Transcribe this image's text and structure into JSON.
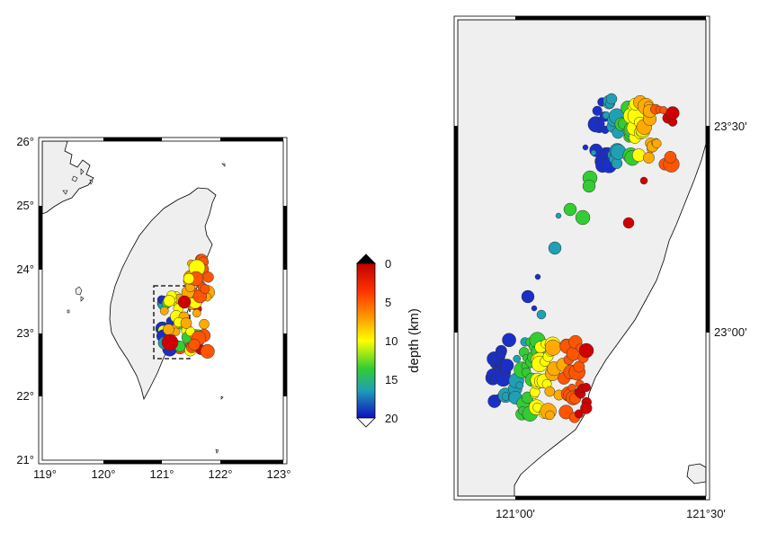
{
  "left_map": {
    "lon_ticks": [
      "119°",
      "120°",
      "121°",
      "122°",
      "123°"
    ],
    "lat_ticks": [
      "21°",
      "22°",
      "23°",
      "24°",
      "25°",
      "26°"
    ]
  },
  "colorbar": {
    "title": "depth (km)",
    "ticks": [
      "0",
      "5",
      "10",
      "15",
      "20"
    ],
    "range": [
      0,
      20
    ],
    "colors": [
      "#d7191c",
      "#ff7f00",
      "#ffff33",
      "#33cc33",
      "#1fa0b4",
      "#1a3acb"
    ]
  },
  "right_map": {
    "lon_ticks": [
      "121°00'",
      "121°30'"
    ],
    "lat_ticks": [
      "23°30'",
      "23°00'"
    ]
  },
  "colors": {
    "land": "#efefef",
    "sea": "#ffffff",
    "coast": "#000000",
    "frame": "#000000"
  }
}
